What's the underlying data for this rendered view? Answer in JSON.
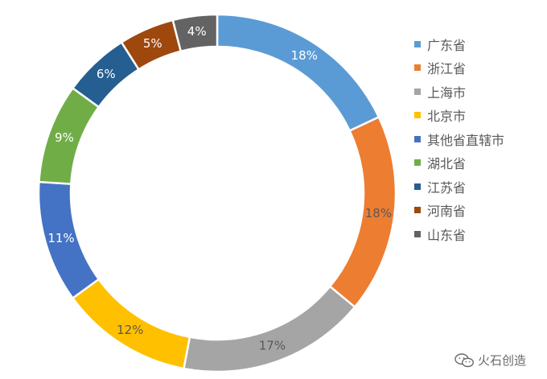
{
  "chart_data": {
    "type": "pie",
    "categories": [
      "广东省",
      "浙江省",
      "上海市",
      "北京市",
      "其他省直辖市",
      "湖北省",
      "江苏省",
      "河南省",
      "山东省"
    ],
    "values": [
      18,
      18,
      17,
      12,
      11,
      9,
      6,
      5,
      4
    ],
    "labels": [
      "18%",
      "18%",
      "17%",
      "12%",
      "11%",
      "9%",
      "6%",
      "5%",
      "4%"
    ],
    "colors": [
      "#5b9bd5",
      "#ed7d31",
      "#a5a5a5",
      "#ffc000",
      "#4472c4",
      "#70ad47",
      "#255e91",
      "#9e480e",
      "#636363"
    ],
    "label_colors": [
      "#ffffff",
      "#595959",
      "#595959",
      "#595959",
      "#ffffff",
      "#ffffff",
      "#ffffff",
      "#ffffff",
      "#ffffff"
    ],
    "donut": true,
    "legend_position": "right"
  },
  "watermark": {
    "text": "火石创造",
    "icon": "wechat-icon"
  }
}
